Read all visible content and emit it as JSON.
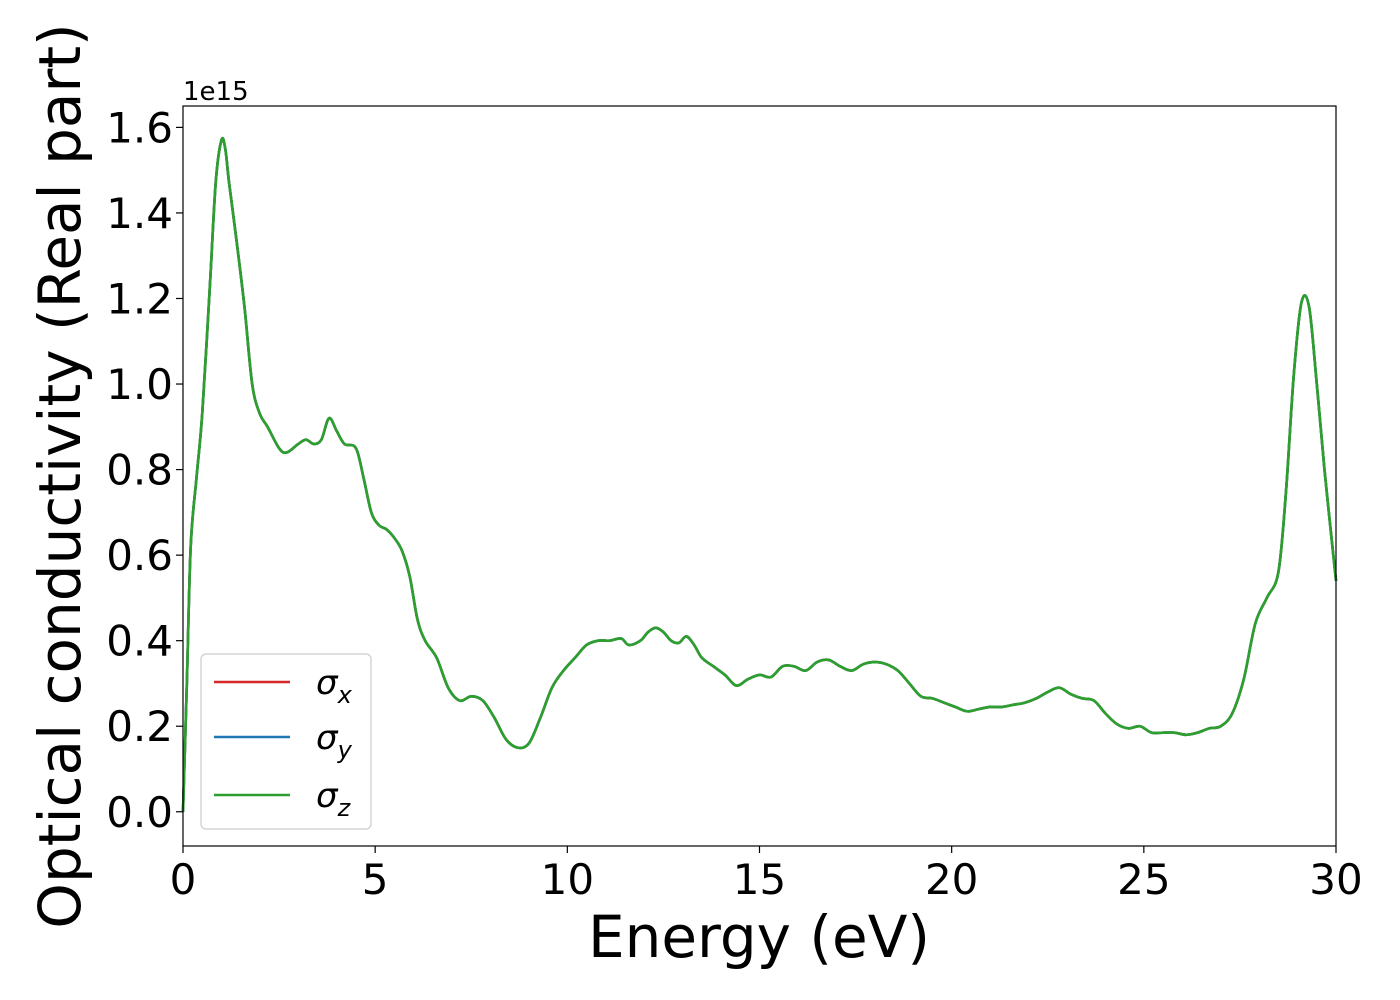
{
  "chart_data": {
    "type": "line",
    "xlabel": "Energy (eV)",
    "ylabel": "Optical conductivity (Real part)",
    "offset_label": "1e15",
    "xlim": [
      0,
      30
    ],
    "ylim": [
      -0.08,
      1.65
    ],
    "y_scale_multiplier": 1000000000000000.0,
    "x_ticks": [
      0,
      5,
      10,
      15,
      20,
      25,
      30
    ],
    "x_tick_labels": [
      "0",
      "5",
      "10",
      "15",
      "20",
      "25",
      "30"
    ],
    "y_ticks": [
      0.0,
      0.2,
      0.4,
      0.6,
      0.8,
      1.0,
      1.2,
      1.4,
      1.6
    ],
    "y_tick_labels": [
      "0.0",
      "0.2",
      "0.4",
      "0.6",
      "0.8",
      "1.0",
      "1.2",
      "1.4",
      "1.6"
    ],
    "grid": false,
    "legend_position": "lower-left",
    "series": [
      {
        "name": "σx",
        "legend_base": "σ",
        "legend_sub": "x",
        "color": "#d62728"
      },
      {
        "name": "σy",
        "legend_base": "σ",
        "legend_sub": "y",
        "color": "#1f77b4"
      },
      {
        "name": "σz",
        "legend_base": "σ",
        "legend_sub": "z",
        "color": "#2ca02c"
      }
    ],
    "x": [
      0,
      0.1,
      0.2,
      0.35,
      0.5,
      0.7,
      0.85,
      1.0,
      1.1,
      1.2,
      1.4,
      1.6,
      1.8,
      2.0,
      2.2,
      2.5,
      2.7,
      3.0,
      3.2,
      3.4,
      3.6,
      3.8,
      4.0,
      4.2,
      4.5,
      4.7,
      4.9,
      5.1,
      5.3,
      5.5,
      5.7,
      5.9,
      6.1,
      6.3,
      6.6,
      6.9,
      7.2,
      7.5,
      7.8,
      8.1,
      8.4,
      8.7,
      9.0,
      9.3,
      9.6,
      9.9,
      10.2,
      10.5,
      10.8,
      11.1,
      11.4,
      11.6,
      11.9,
      12.1,
      12.3,
      12.5,
      12.7,
      12.9,
      13.1,
      13.3,
      13.5,
      13.8,
      14.1,
      14.4,
      14.7,
      15.0,
      15.3,
      15.6,
      15.9,
      16.2,
      16.5,
      16.8,
      17.1,
      17.4,
      17.7,
      18.0,
      18.3,
      18.6,
      18.9,
      19.2,
      19.5,
      19.8,
      20.1,
      20.4,
      20.7,
      21.0,
      21.3,
      21.6,
      21.9,
      22.2,
      22.5,
      22.8,
      23.1,
      23.4,
      23.7,
      24.0,
      24.3,
      24.6,
      24.9,
      25.2,
      25.5,
      25.8,
      26.1,
      26.4,
      26.7,
      27.0,
      27.3,
      27.6,
      27.9,
      28.2,
      28.5,
      28.7,
      28.9,
      29.1,
      29.3,
      29.5,
      29.7,
      30.0
    ],
    "y": [
      0.0,
      0.3,
      0.62,
      0.78,
      0.93,
      1.23,
      1.47,
      1.57,
      1.55,
      1.47,
      1.33,
      1.18,
      1.0,
      0.93,
      0.9,
      0.85,
      0.84,
      0.86,
      0.87,
      0.86,
      0.87,
      0.92,
      0.89,
      0.86,
      0.85,
      0.78,
      0.7,
      0.67,
      0.66,
      0.64,
      0.61,
      0.55,
      0.45,
      0.4,
      0.36,
      0.29,
      0.26,
      0.27,
      0.26,
      0.22,
      0.17,
      0.15,
      0.16,
      0.22,
      0.29,
      0.33,
      0.36,
      0.39,
      0.4,
      0.4,
      0.405,
      0.39,
      0.4,
      0.42,
      0.43,
      0.42,
      0.4,
      0.395,
      0.41,
      0.39,
      0.36,
      0.34,
      0.32,
      0.295,
      0.31,
      0.32,
      0.315,
      0.34,
      0.34,
      0.33,
      0.35,
      0.355,
      0.34,
      0.33,
      0.345,
      0.35,
      0.345,
      0.33,
      0.3,
      0.27,
      0.265,
      0.255,
      0.245,
      0.235,
      0.24,
      0.245,
      0.245,
      0.25,
      0.255,
      0.265,
      0.28,
      0.29,
      0.275,
      0.265,
      0.26,
      0.23,
      0.205,
      0.195,
      0.2,
      0.185,
      0.185,
      0.185,
      0.18,
      0.185,
      0.195,
      0.2,
      0.23,
      0.31,
      0.44,
      0.5,
      0.56,
      0.75,
      1.02,
      1.19,
      1.18,
      1.0,
      0.8,
      0.54
    ]
  }
}
